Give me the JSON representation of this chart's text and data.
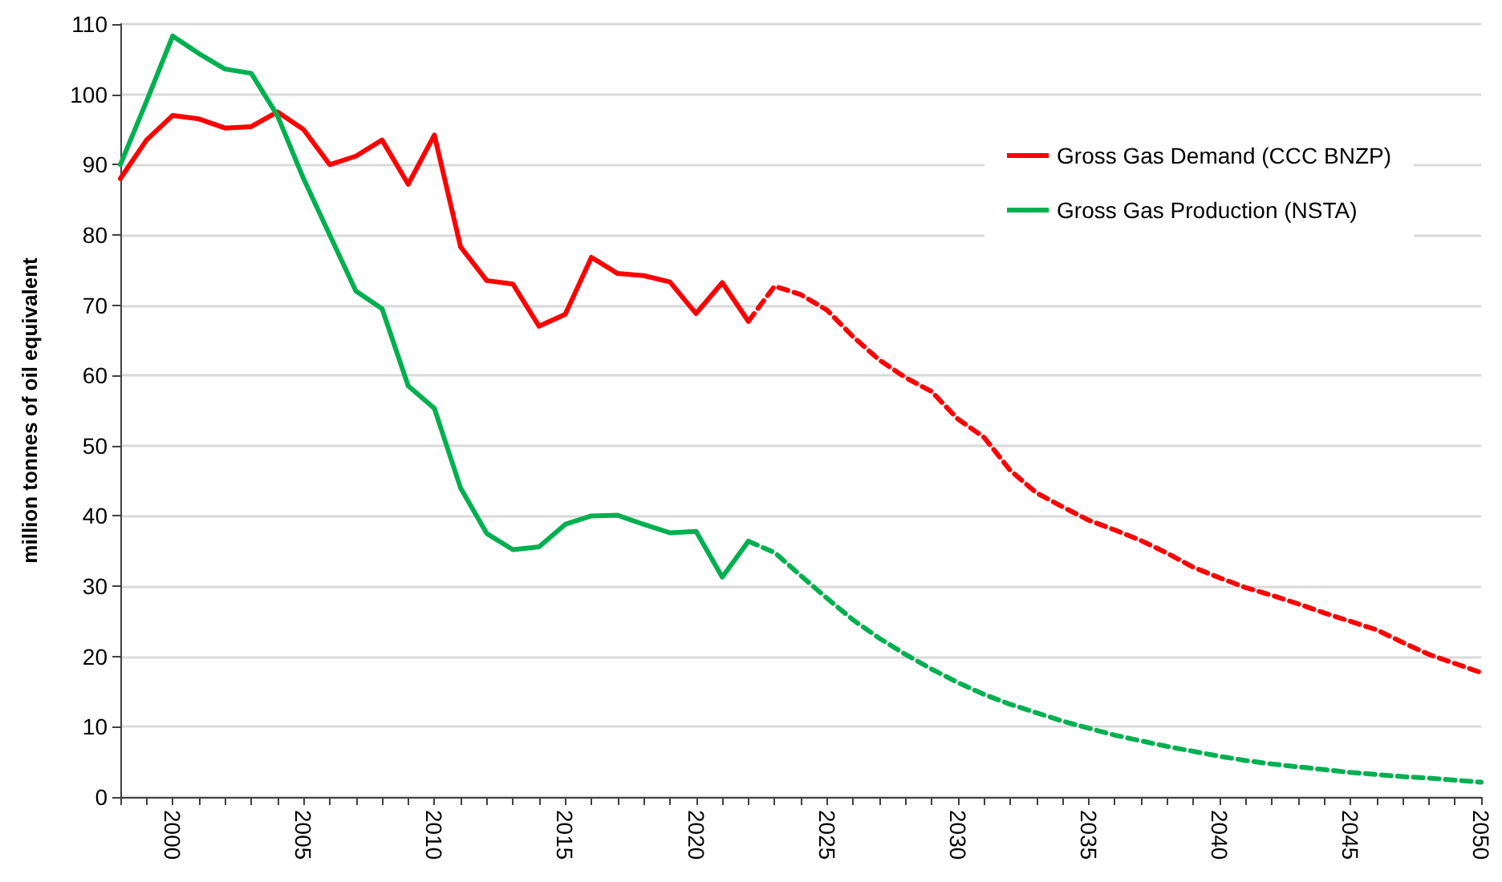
{
  "chart_data": {
    "type": "line",
    "ylabel": "million tonnes of oil equivalent",
    "x": [
      1998,
      1999,
      2000,
      2001,
      2002,
      2003,
      2004,
      2005,
      2006,
      2007,
      2008,
      2009,
      2010,
      2011,
      2012,
      2013,
      2014,
      2015,
      2016,
      2017,
      2018,
      2019,
      2020,
      2021,
      2022
    ],
    "series": [
      {
        "name": "Gross Gas Demand (CCC BNZP)",
        "color": "#ff0000",
        "line_style": "solid",
        "values": [
          88,
          93.5,
          97,
          96.5,
          95.2,
          95.4,
          97.5,
          95,
          90,
          91.2,
          93.5,
          87.2,
          94.2,
          78.3,
          73.5,
          73,
          67,
          68.7,
          76.8,
          74.5,
          74.2,
          73.3,
          68.8,
          73.2,
          67.7
        ]
      },
      {
        "name": "Gross Gas Production (NSTA)",
        "color": "#00b050",
        "line_style": "solid",
        "values": [
          90,
          99,
          108.3,
          105.8,
          103.6,
          103,
          97,
          88,
          80,
          72,
          69.5,
          58.5,
          55.3,
          44,
          37.5,
          35.2,
          35.6,
          38.8,
          40,
          40.1,
          38.8,
          37.6,
          37.8,
          31.3,
          36.4
        ]
      },
      {
        "color": "#ff0000",
        "line_style": "dashed",
        "x": [
          2022,
          2023,
          2024,
          2025,
          2026,
          2027,
          2028,
          2029,
          2030,
          2031,
          2032,
          2033,
          2034,
          2035,
          2036,
          2037,
          2038,
          2039,
          2040,
          2041,
          2042,
          2043,
          2044,
          2045,
          2046,
          2047,
          2048,
          2049,
          2050
        ],
        "values": [
          67.7,
          72.7,
          71.5,
          69.3,
          65.5,
          62.2,
          59.7,
          57.7,
          53.8,
          51.2,
          46.5,
          43.3,
          41.3,
          39.4,
          38,
          36.5,
          34.7,
          32.7,
          31.2,
          29.8,
          28.7,
          27.5,
          26.2,
          25,
          23.8,
          22,
          20.3,
          19,
          17.7
        ]
      },
      {
        "color": "#00b050",
        "line_style": "dashed",
        "x": [
          2022,
          2023,
          2024,
          2025,
          2026,
          2027,
          2028,
          2029,
          2030,
          2031,
          2032,
          2033,
          2034,
          2035,
          2036,
          2037,
          2038,
          2039,
          2040,
          2041,
          2042,
          2043,
          2044,
          2045,
          2046,
          2047,
          2048,
          2049,
          2050
        ],
        "values": [
          36.4,
          34.8,
          31.5,
          28.3,
          25.2,
          22.6,
          20.3,
          18.2,
          16.3,
          14.6,
          13.2,
          12,
          10.8,
          9.8,
          8.8,
          8,
          7.2,
          6.5,
          5.8,
          5.2,
          4.7,
          4.3,
          3.9,
          3.5,
          3.2,
          2.9,
          2.7,
          2.4,
          2.1
        ]
      }
    ],
    "xlim": [
      1998,
      2050
    ],
    "xticks": [
      {
        "value": 1998,
        "label": null
      },
      {
        "value": 1999,
        "label": null
      },
      2000,
      {
        "value": 2001,
        "label": null
      },
      {
        "value": 2002,
        "label": null
      },
      {
        "value": 2003,
        "label": null
      },
      {
        "value": 2004,
        "label": null
      },
      2005,
      {
        "value": 2006,
        "label": null
      },
      {
        "value": 2007,
        "label": null
      },
      {
        "value": 2008,
        "label": null
      },
      {
        "value": 2009,
        "label": null
      },
      2010,
      {
        "value": 2011,
        "label": null
      },
      {
        "value": 2012,
        "label": null
      },
      {
        "value": 2013,
        "label": null
      },
      {
        "value": 2014,
        "label": null
      },
      2015,
      {
        "value": 2016,
        "label": null
      },
      {
        "value": 2017,
        "label": null
      },
      {
        "value": 2018,
        "label": null
      },
      {
        "value": 2019,
        "label": null
      },
      2020,
      {
        "value": 2021,
        "label": null
      },
      {
        "value": 2022,
        "label": null
      },
      {
        "value": 2023,
        "label": null
      },
      {
        "value": 2024,
        "label": null
      },
      2025,
      {
        "value": 2026,
        "label": null
      },
      {
        "value": 2027,
        "label": null
      },
      {
        "value": 2028,
        "label": null
      },
      {
        "value": 2029,
        "label": null
      },
      2030,
      {
        "value": 2031,
        "label": null
      },
      {
        "value": 2032,
        "label": null
      },
      {
        "value": 2033,
        "label": null
      },
      {
        "value": 2034,
        "label": null
      },
      2035,
      {
        "value": 2036,
        "label": null
      },
      {
        "value": 2037,
        "label": null
      },
      {
        "value": 2038,
        "label": null
      },
      {
        "value": 2039,
        "label": null
      },
      2040,
      {
        "value": 2041,
        "label": null
      },
      {
        "value": 2042,
        "label": null
      },
      {
        "value": 2043,
        "label": null
      },
      {
        "value": 2044,
        "label": null
      },
      2045,
      {
        "value": 2046,
        "label": null
      },
      {
        "value": 2047,
        "label": null
      },
      {
        "value": 2048,
        "label": null
      },
      {
        "value": 2049,
        "label": null
      },
      2050
    ],
    "ylim": [
      0,
      110
    ],
    "yticks": [
      0,
      10,
      20,
      30,
      40,
      50,
      60,
      70,
      80,
      90,
      100,
      110
    ],
    "grid": "y",
    "legend": "top right",
    "marker": "none"
  }
}
